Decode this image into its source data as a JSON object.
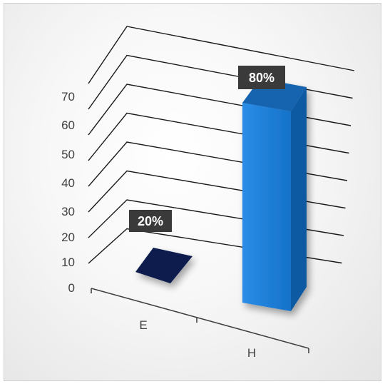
{
  "chart_data": {
    "type": "bar",
    "categories": [
      "E",
      "H"
    ],
    "values": [
      20,
      80
    ],
    "data_labels": [
      "20%",
      "80%"
    ],
    "title": "",
    "xlabel": "",
    "ylabel": "",
    "y_ticks": [
      "0",
      "10",
      "20",
      "30",
      "40",
      "50",
      "60",
      "70"
    ],
    "ylim": [
      0,
      80
    ],
    "grid": true,
    "three_d": true,
    "colors": {
      "E": "#0b1f4d",
      "H": "#1a7ad4",
      "label_background": "#3a3a3a"
    }
  }
}
